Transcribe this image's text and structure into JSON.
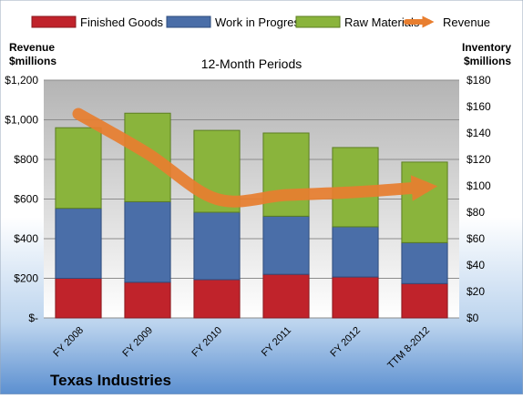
{
  "chart_data": {
    "type": "bar",
    "stacked": true,
    "title": "12-Month Periods",
    "company": "Texas Industries",
    "categories": [
      "FY 2008",
      "FY 2009",
      "FY 2010",
      "FY 2011",
      "FY 2012",
      "TTM 8-2012"
    ],
    "series": [
      {
        "name": "Finished Goods",
        "axis": "right",
        "color": "#c0232b",
        "values": [
          30,
          27,
          29,
          33,
          31,
          26
        ]
      },
      {
        "name": "Work in Progress",
        "axis": "right",
        "color": "#4a6ea8",
        "values": [
          53,
          61,
          51,
          44,
          38,
          31
        ]
      },
      {
        "name": "Raw Materials",
        "axis": "right",
        "color": "#8ab43c",
        "values": [
          61,
          67,
          62,
          63,
          60,
          61
        ]
      },
      {
        "name": "Revenue",
        "axis": "left",
        "type": "line",
        "color": "#e87e2f",
        "values": [
          1030,
          830,
          600,
          620,
          635,
          660
        ]
      }
    ],
    "left_axis": {
      "label": [
        "Revenue",
        "$millions"
      ],
      "ylim": [
        0,
        1200
      ],
      "ticks": [
        "$-",
        "$200",
        "$400",
        "$600",
        "$800",
        "$1,000",
        "$1,200"
      ]
    },
    "right_axis": {
      "label": [
        "Inventory",
        "$millions"
      ],
      "ylim": [
        0,
        180
      ],
      "ticks": [
        "$0",
        "$20",
        "$40",
        "$60",
        "$80",
        "$100",
        "$120",
        "$140",
        "$160",
        "$180"
      ]
    },
    "grid": true,
    "legend": "top"
  }
}
